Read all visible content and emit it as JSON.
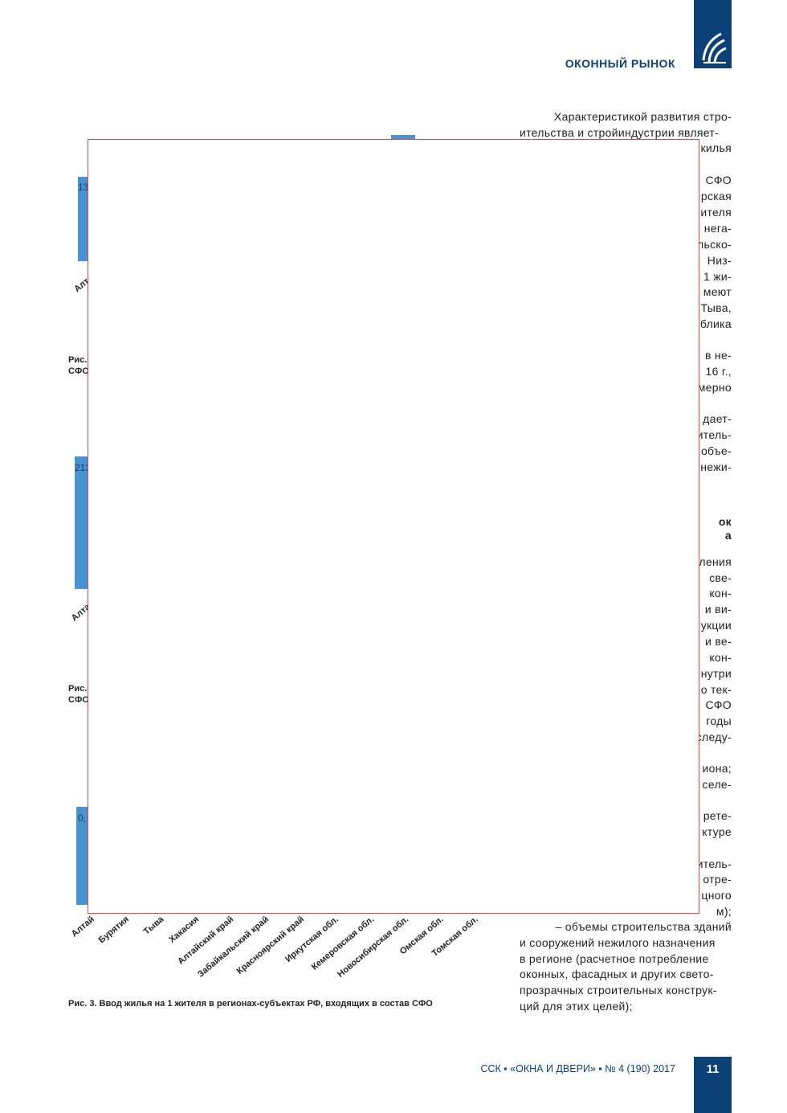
{
  "header": {
    "section": "ОКОННЫЙ РЫНОК",
    "logo": "logo-icon"
  },
  "text_top": [
    "Характеристикой развития стро-",
    "ительства и стройиндустрии являет-"
  ],
  "text_fragments": [
    "килья",
    "СФО",
    "рская",
    "ителя",
    "нега-",
    "льско-",
    "Низ-",
    "1 жи-",
    "меют",
    "Тыва,",
    "блика",
    "в не-",
    "16 г.,",
    "мерно",
    "дает-",
    "итель-",
    "объе-",
    "нежи-",
    "ок",
    "а",
    "ления",
    "све-",
    "кон-",
    "и ви-",
    "укции",
    "и ве-",
    "кон-",
    "нутри",
    "о тек-",
    "СФО",
    "годы",
    "следу-",
    "иона;",
    "селе-",
    "рете-",
    "ктуре",
    "итель-",
    "отре-",
    "цного",
    "м);"
  ],
  "text_bottom": [
    "– объемы строительства зданий",
    "и сооружений нежилого назначения",
    "в регионе (расчетное потребление",
    "оконных, фасадных и других свето-",
    "прозрачных строительных конструк-",
    "ций для этих целей);"
  ],
  "fig1": {
    "value_fragment": "13",
    "label_fragment": "Алта",
    "caption_fragment": [
      "Рис.",
      "СФО"
    ]
  },
  "fig2": {
    "value_fragment": "213",
    "label_fragment": "Алтай",
    "caption_fragment": [
      "Рис.",
      "СФО"
    ]
  },
  "fig3": {
    "value_fragment": "0,",
    "labels": [
      "Алтай",
      "Бурятия",
      "Тыва",
      "Хакасия",
      "Алтайский край",
      "Забайкальский край",
      "Красноярский край",
      "Иркутская обл.",
      "Кемеровская обл.",
      "Новосибирская обл.",
      "Омская обл.",
      "Томская обл."
    ],
    "caption": "Рис. 3. Ввод жилья на 1 жителя в регионах-субъектах РФ, входящих в состав СФО"
  },
  "footer": {
    "journal": "ССК ▪ «ОКНА И ДВЕРИ» ▪ № 4 (190) 2017",
    "page": "11"
  },
  "colors": {
    "brand": "#0b4177",
    "bar": "#4a93d2",
    "overlay_border": "#e0454f"
  }
}
